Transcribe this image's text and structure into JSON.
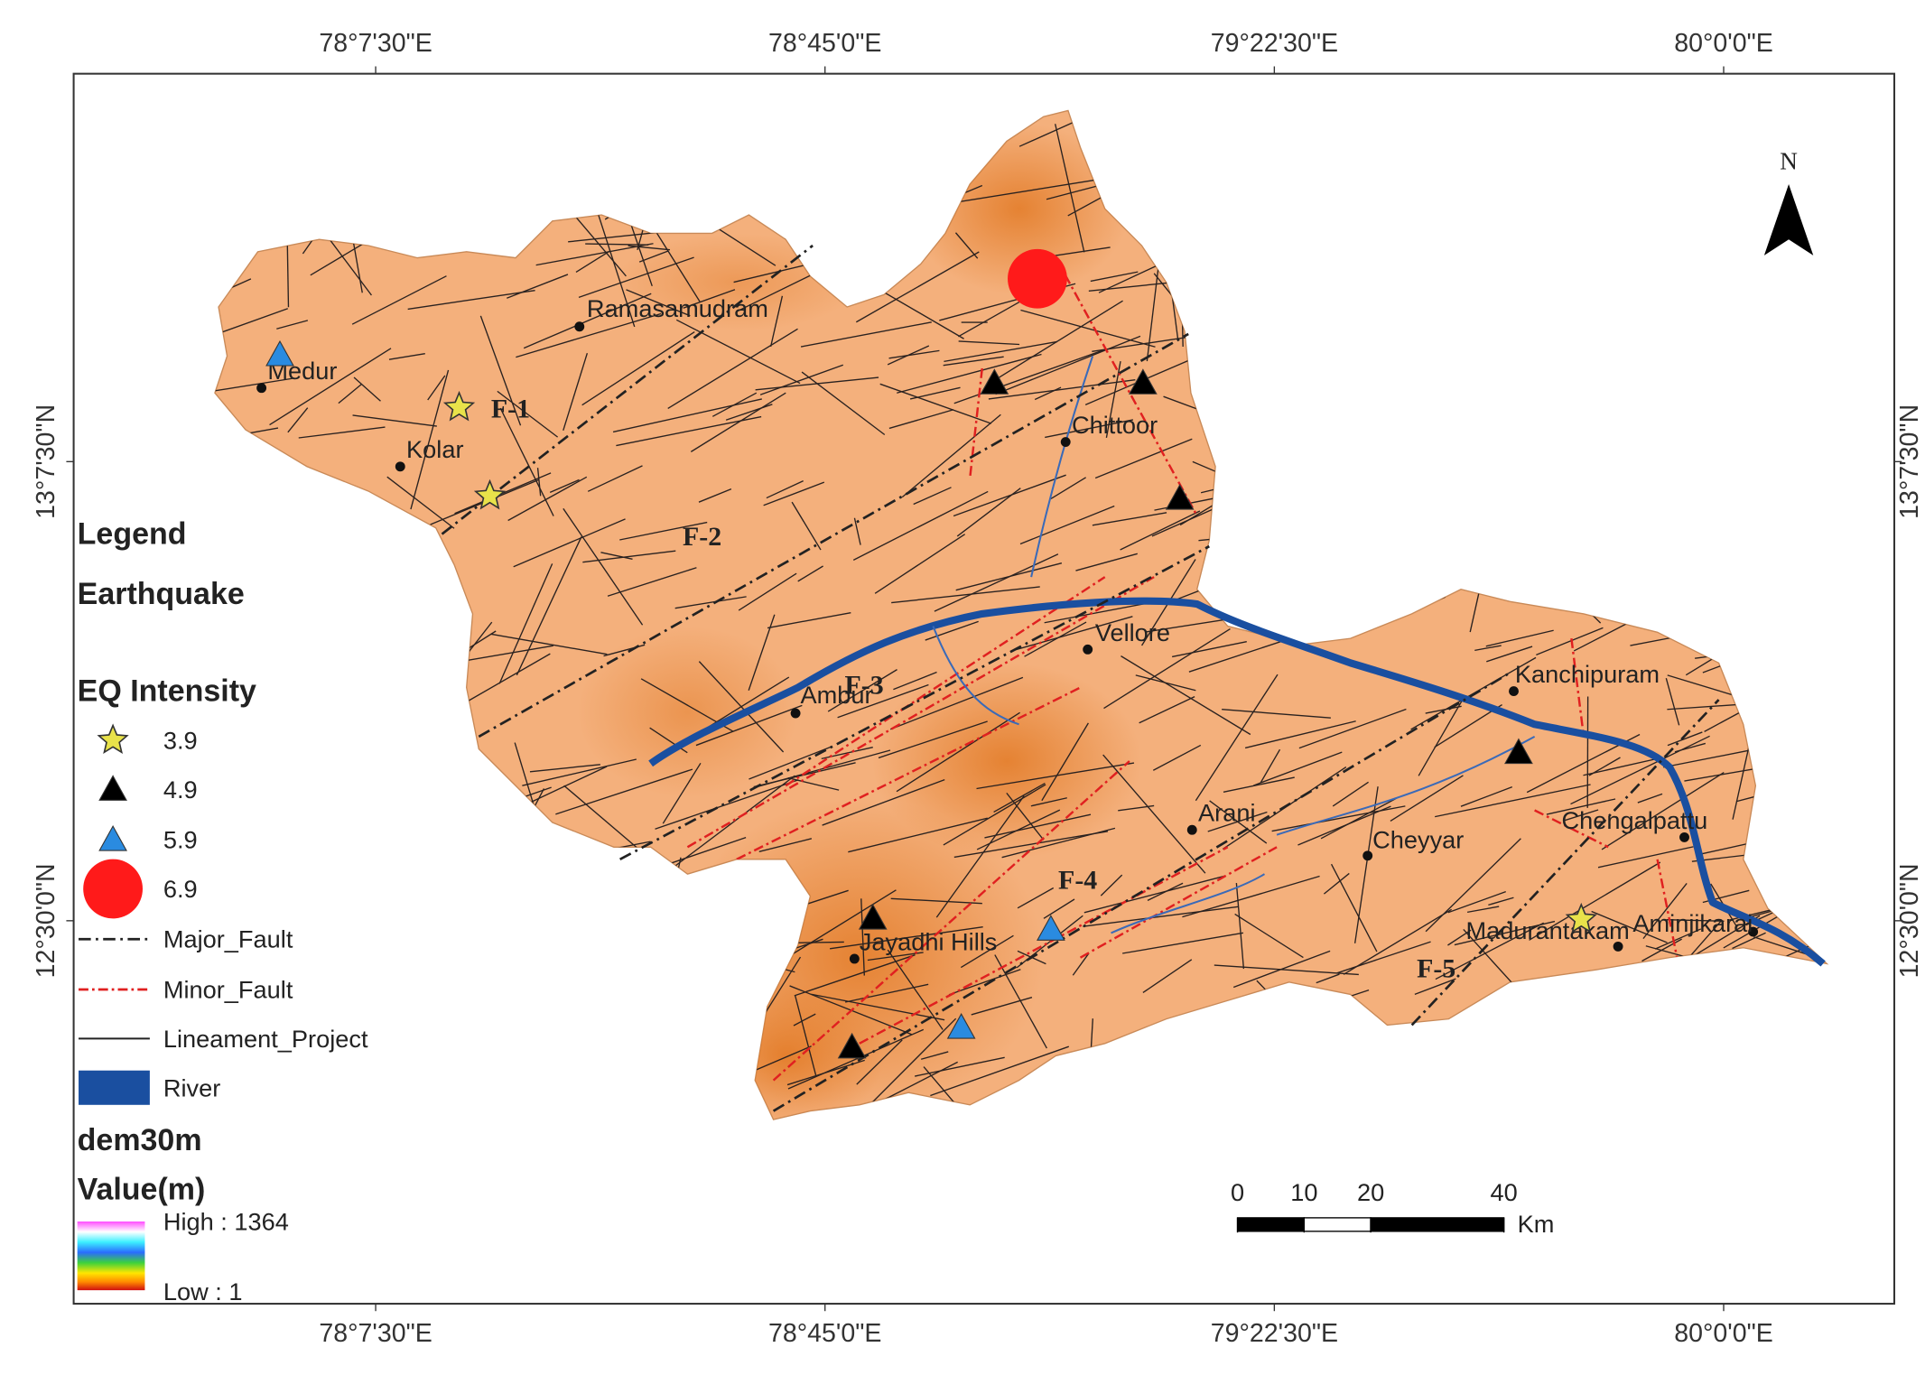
{
  "map": {
    "longitude_labels": [
      "78°7'30\"E",
      "78°45'0\"E",
      "79°22'30\"E",
      "80°0'0\"E"
    ],
    "latitude_labels": [
      "13°7'30\"N",
      "12°30'0\"N"
    ],
    "north": "N",
    "places": [
      "Ramasamudram",
      "Medur",
      "Kolar",
      "Chittoor",
      "Vellore",
      "Ambur",
      "Arani",
      "Cheyyar",
      "Kanchipuram",
      "Chengalpattu",
      "Madurantakam",
      "Aminjikarai",
      "Jayadhi Hills"
    ],
    "faults": [
      "F-1",
      "F-2",
      "F-3",
      "F-4",
      "F-5"
    ],
    "legend": {
      "title": "Legend",
      "earthquake": "Earthquake",
      "eq_intensity": "EQ Intensity",
      "intensity_values": [
        3.9,
        4.9,
        5.9,
        6.9
      ],
      "layers": [
        "Major_Fault",
        "Minor_Fault",
        "Lineament_Project",
        "River"
      ],
      "dem_title": "dem30m",
      "value_title": "Value(m)",
      "high": "High : 1364",
      "low": "Low : 1"
    },
    "scale_bar": {
      "ticks": [
        0,
        10,
        20,
        40
      ],
      "unit": "Km"
    }
  }
}
